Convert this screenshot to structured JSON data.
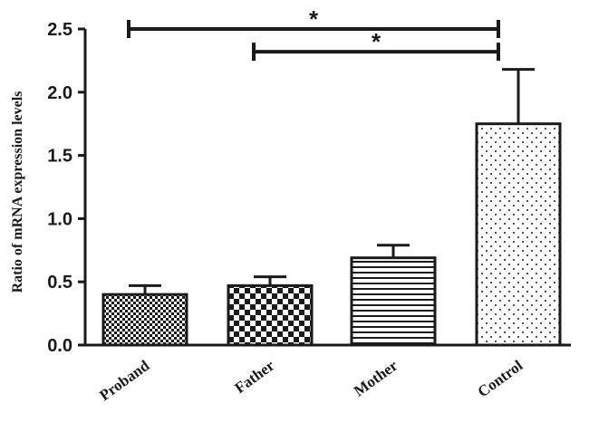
{
  "chart_data": {
    "type": "bar",
    "categories": [
      "Proband",
      "Father",
      "Mother",
      "Control"
    ],
    "values": [
      0.4,
      0.47,
      0.69,
      1.75
    ],
    "errors": [
      0.07,
      0.07,
      0.1,
      0.43
    ],
    "patterns": [
      "checker-fine",
      "checker-coarse",
      "horizontal-lines",
      "dots"
    ],
    "ylabel": "Ratio of mRNA expression levels",
    "ylim": [
      0,
      2.5
    ],
    "yticks": [
      0.0,
      0.5,
      1.0,
      1.5,
      2.0,
      2.5
    ],
    "ytick_labels": [
      "0.0",
      "0.5",
      "1.0",
      "1.5",
      "2.0",
      "2.5"
    ],
    "significance": [
      {
        "from": "Proband",
        "to": "Control",
        "label": "*",
        "level": 2.5
      },
      {
        "from": "Father",
        "to": "Control",
        "label": "*",
        "level": 2.32
      }
    ],
    "grid": false,
    "legend": "none"
  },
  "colors": {
    "ink": "#1a1a1a",
    "background": "#ffffff"
  }
}
